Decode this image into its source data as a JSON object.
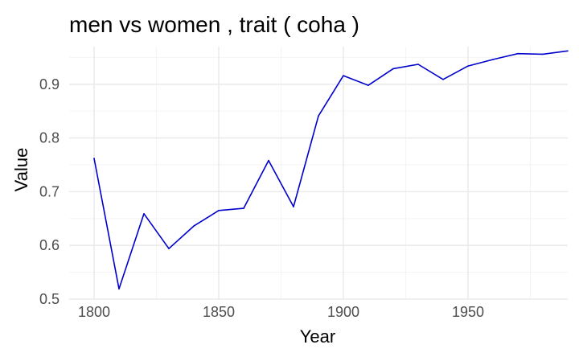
{
  "chart_data": {
    "type": "line",
    "title": "men vs women , trait ( coha )",
    "xlabel": "Year",
    "ylabel": "Value",
    "xlim": [
      1790,
      1990
    ],
    "ylim": [
      0.5,
      0.97
    ],
    "x_ticks": [
      1800,
      1850,
      1900,
      1950
    ],
    "y_ticks": [
      0.5,
      0.6,
      0.7,
      0.8,
      0.9
    ],
    "x_tick_labels": [
      "1800",
      "1850",
      "1900",
      "1950"
    ],
    "y_tick_labels": [
      "0.5",
      "0.6",
      "0.7",
      "0.8",
      "0.9"
    ],
    "grid": true,
    "legend": "none",
    "series": [
      {
        "color": "#0000cd",
        "x": [
          1800,
          1810,
          1820,
          1830,
          1840,
          1850,
          1860,
          1870,
          1880,
          1890,
          1900,
          1910,
          1920,
          1930,
          1940,
          1950,
          1960,
          1970,
          1980,
          1990
        ],
        "values": [
          0.762,
          0.519,
          0.659,
          0.594,
          0.636,
          0.665,
          0.669,
          0.758,
          0.672,
          0.841,
          0.916,
          0.898,
          0.929,
          0.937,
          0.909,
          0.934,
          0.946,
          0.957,
          0.956,
          0.962
        ]
      }
    ]
  }
}
